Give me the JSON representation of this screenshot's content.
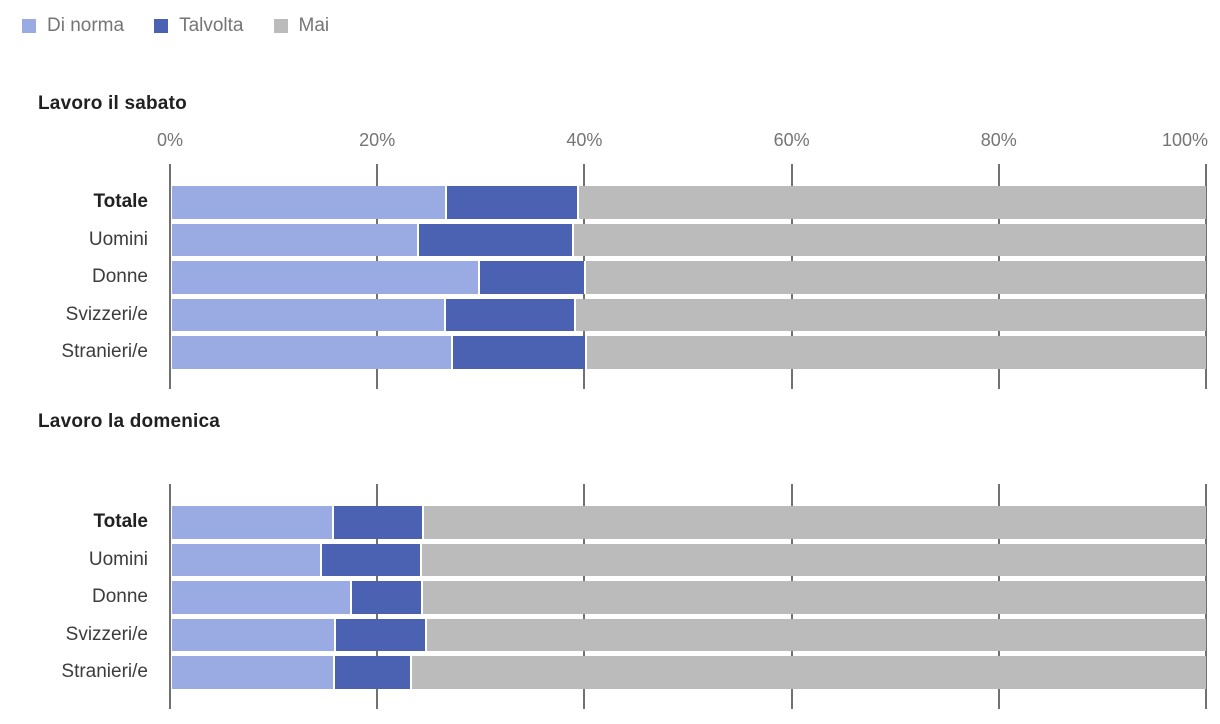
{
  "colors": {
    "di_norma": "#9AABE3",
    "talvolta": "#4A62B1",
    "mai": "#BBBBBB",
    "grid": "#717171",
    "axis_text": "#757575",
    "title_text": "#212121",
    "category_text": "#3c3c3c"
  },
  "chart_data": [
    {
      "type": "bar",
      "orientation": "horizontal",
      "stacked": true,
      "title": "Lavoro il sabato",
      "categories": [
        {
          "label": "Totale",
          "bold": true
        },
        {
          "label": "Uomini",
          "bold": false
        },
        {
          "label": "Donne",
          "bold": false
        },
        {
          "label": "Svizzeri/e",
          "bold": false
        },
        {
          "label": "Stranieri/e",
          "bold": false
        }
      ],
      "series": [
        {
          "name": "Di norma",
          "color": "#9AABE3",
          "values": [
            26.4,
            23.7,
            29.6,
            26.3,
            27.0
          ]
        },
        {
          "name": "Talvolta",
          "color": "#4A62B1",
          "values": [
            12.8,
            15.0,
            10.2,
            12.6,
            12.9
          ]
        },
        {
          "name": "Mai",
          "color": "#BBBBBB",
          "values": [
            60.8,
            61.3,
            60.2,
            61.1,
            60.1
          ]
        }
      ],
      "xlim": [
        0,
        100
      ],
      "x_tick_values": [
        0,
        20,
        40,
        60,
        80,
        100
      ],
      "x_tick_labels": [
        "0%",
        "20%",
        "40%",
        "60%",
        "80%",
        "100%"
      ],
      "grid": true,
      "legend_position": "top-left"
    },
    {
      "type": "bar",
      "orientation": "horizontal",
      "stacked": true,
      "title": "Lavoro la domenica",
      "categories": [
        {
          "label": "Totale",
          "bold": true
        },
        {
          "label": "Uomini",
          "bold": false
        },
        {
          "label": "Donne",
          "bold": false
        },
        {
          "label": "Svizzeri/e",
          "bold": false
        },
        {
          "label": "Stranieri/e",
          "bold": false
        }
      ],
      "series": [
        {
          "name": "Di norma",
          "color": "#9AABE3",
          "values": [
            15.5,
            14.3,
            17.2,
            15.7,
            15.6
          ]
        },
        {
          "name": "Talvolta",
          "color": "#4A62B1",
          "values": [
            8.7,
            9.7,
            6.9,
            8.8,
            7.4
          ]
        },
        {
          "name": "Mai",
          "color": "#BBBBBB",
          "values": [
            75.8,
            76.0,
            75.9,
            75.5,
            77.0
          ]
        }
      ],
      "xlim": [
        0,
        100
      ],
      "x_tick_values": [
        0,
        20,
        40,
        60,
        80,
        100
      ],
      "x_tick_labels": null,
      "grid": true
    }
  ]
}
